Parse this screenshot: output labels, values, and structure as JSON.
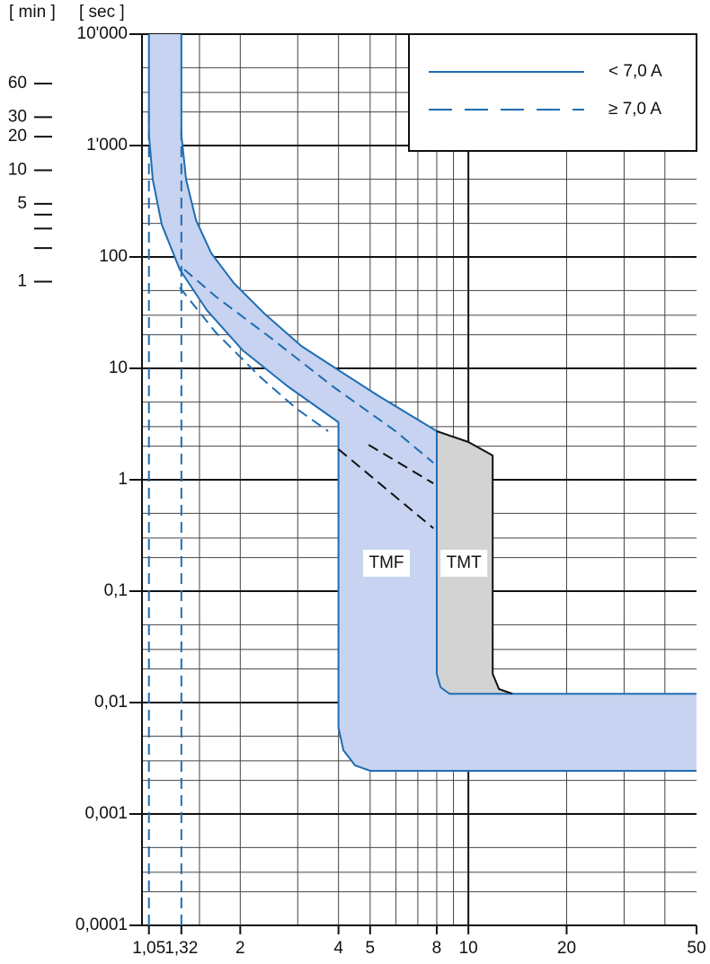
{
  "chart_data": {
    "type": "line",
    "log_x": true,
    "log_y": true,
    "y_axis_label": "[ sec ]",
    "minute_axis_label": "[ min ]",
    "xlim": [
      1,
      50
    ],
    "ylim": [
      0.0001,
      10000
    ],
    "xticks": [
      {
        "value": 1.05,
        "label": "1,05"
      },
      {
        "value": 1.32,
        "label": "1,32"
      },
      2,
      4,
      5,
      8,
      10,
      20,
      50
    ],
    "yticks": [
      {
        "value": 0.0001,
        "label": "0,0001"
      },
      {
        "value": 0.001,
        "label": "0,001"
      },
      {
        "value": 0.01,
        "label": "0,01"
      },
      {
        "value": 0.1,
        "label": "0,1"
      },
      1,
      10,
      100,
      {
        "value": 1000,
        "label": "1'000"
      },
      {
        "value": 10000,
        "label": "10'000"
      }
    ],
    "xgrid": [
      1.5,
      2,
      3,
      4,
      5,
      6,
      7,
      8,
      9,
      20,
      30,
      40
    ],
    "xgrid_major": [
      1,
      10
    ],
    "yminorgrid": [
      0.0002,
      0.0003,
      0.0005,
      0.002,
      0.003,
      0.005,
      0.02,
      0.03,
      0.05,
      0.2,
      0.3,
      0.5,
      2,
      3,
      5,
      20,
      30,
      50,
      200,
      300,
      500,
      2000,
      3000,
      5000
    ],
    "minute_ticks": [
      {
        "value": 3600,
        "label": "60"
      },
      {
        "value": 1800,
        "label": "30"
      },
      {
        "value": 1200,
        "label": "20"
      },
      {
        "value": 600,
        "label": "10"
      },
      {
        "value": 300,
        "label": "5"
      },
      {
        "value": 60,
        "label": "1"
      }
    ],
    "minute_minor_ticks": [
      240,
      180,
      120
    ],
    "legend": "upper right",
    "legend_entries": [
      {
        "label": "< 7,0 A",
        "style": "solid",
        "color": "#1f6db3"
      },
      {
        "label": "≥ 7,0 A",
        "style": "dashed",
        "color": "#1f6db3"
      }
    ],
    "series": [
      {
        "style": "solid",
        "color": "#1f6db3",
        "x": [
          1.32,
          1.32,
          1.365,
          1.464,
          1.63,
          1.91,
          2.385,
          3.074,
          4,
          5.27,
          8,
          8,
          8.22,
          8.75,
          50
        ],
        "values": [
          10000,
          1250,
          494,
          214,
          108,
          58.4,
          30.5,
          15.9,
          9.63,
          5.73,
          2.73,
          0.0181,
          0.0137,
          0.012,
          0.012
        ]
      },
      {
        "style": "solid",
        "color": "#1f6db3",
        "x": [
          1.05,
          1.05,
          1.079,
          1.15,
          1.305,
          1.579,
          2.035,
          2.795,
          4,
          4,
          4.14,
          4.5,
          5.01,
          50
        ],
        "values": [
          10000,
          1250,
          494,
          195,
          77.1,
          33.4,
          14.5,
          6.9,
          3.28,
          0.00594,
          0.00374,
          0.00272,
          0.00244,
          0.00244
        ]
      },
      {
        "style": "solid",
        "color": "#111111",
        "x": [
          8,
          10,
          11.87,
          11.87,
          12.41,
          13.65
        ],
        "values": [
          2.73,
          2.18,
          1.65,
          0.0181,
          0.0132,
          0.012
        ]
      },
      {
        "style": "dashed",
        "color": "#1f6db3",
        "x": [
          1.05,
          1.05
        ],
        "values": [
          0.0001,
          2182
        ]
      },
      {
        "style": "dashed",
        "color": "#1f6db3",
        "x": [
          1.32,
          1.32
        ],
        "values": [
          0.0001,
          1504
        ]
      },
      {
        "style": "dashed",
        "color": "#1f6db3",
        "x": [
          1.347,
          1.682,
          2.462,
          3.837,
          5.98,
          7.81
        ],
        "values": [
          77.1,
          44.2,
          19.1,
          6.9,
          2.73,
          1.42
        ]
      },
      {
        "style": "dashed",
        "color": "#1f6db3",
        "x": [
          1.305,
          1.682,
          2.31,
          2.978,
          3.718
        ],
        "values": [
          53.2,
          21.0,
          8.3,
          4.34,
          2.73
        ]
      },
      {
        "style": "dashed",
        "color": "#111111",
        "x": [
          4.946,
          7.81
        ],
        "values": [
          2.06,
          0.928
        ]
      },
      {
        "style": "dashed",
        "color": "#111111",
        "x": [
          4,
          7.81
        ],
        "values": [
          1.88,
          0.367
        ]
      }
    ],
    "band_fill": {
      "between": [
        0,
        1
      ],
      "color": "#c7d3f0"
    },
    "regions": [
      {
        "color": "#d3d3d3",
        "x": [
          8,
          10,
          11.87,
          11.87,
          12.41,
          13.65,
          8.75,
          8.22,
          8
        ],
        "values": [
          2.73,
          2.18,
          1.65,
          0.0181,
          0.0132,
          0.012,
          0.012,
          0.0137,
          0.0181
        ]
      }
    ],
    "annotations": [
      {
        "text": "TMF",
        "x": 5.61,
        "y": 0.178
      },
      {
        "text": "TMT",
        "x": 9.69,
        "y": 0.178
      }
    ]
  }
}
